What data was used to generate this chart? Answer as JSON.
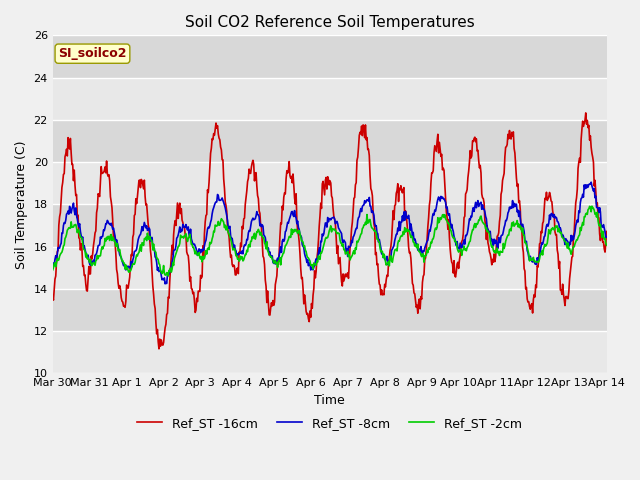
{
  "title": "Soil CO2 Reference Soil Temperatures",
  "xlabel": "Time",
  "ylabel": "Soil Temperature (C)",
  "ylim": [
    10,
    26
  ],
  "xlim_days": [
    0,
    15
  ],
  "fig_bg_color": "#f0f0f0",
  "plot_bg_color": "#e8e8e8",
  "band_colors": [
    "#e0e0e0",
    "#ebebeb"
  ],
  "grid_color": "#d0d0d0",
  "legend_label_16cm": "Ref_ST -16cm",
  "legend_label_8cm": "Ref_ST -8cm",
  "legend_label_2cm": "Ref_ST -2cm",
  "color_16cm": "#cc0000",
  "color_8cm": "#0000cc",
  "color_2cm": "#00cc00",
  "annotation_text": "SI_soilco2",
  "annotation_color": "#8b0000",
  "annotation_bg": "#ffffcc",
  "annotation_edge": "#999900",
  "yticks": [
    10,
    12,
    14,
    16,
    18,
    20,
    22,
    24,
    26
  ],
  "xtick_labels": [
    "Mar 30",
    "Mar 31",
    "Apr 1",
    "Apr 2",
    "Apr 3",
    "Apr 4",
    "Apr 5",
    "Apr 6",
    "Apr 7",
    "Apr 8",
    "Apr 9",
    "Apr 10",
    "Apr 11",
    "Apr 12",
    "Apr 13",
    "Apr 14"
  ],
  "xtick_positions": [
    0,
    1,
    2,
    3,
    4,
    5,
    6,
    7,
    8,
    9,
    10,
    11,
    12,
    13,
    14,
    15
  ],
  "title_fontsize": 11,
  "axis_label_fontsize": 9,
  "tick_fontsize": 8,
  "legend_fontsize": 9,
  "linewidth": 1.2
}
